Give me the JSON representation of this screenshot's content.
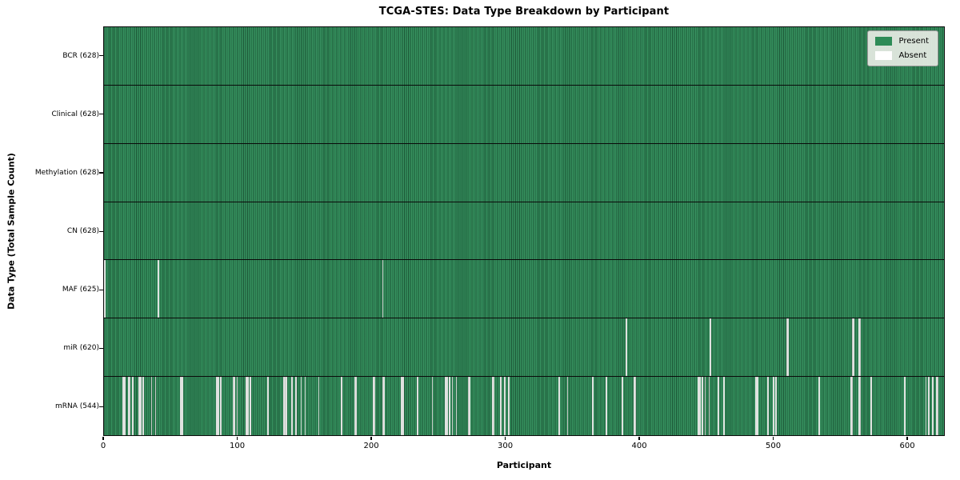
{
  "title": "TCGA-STES: Data Type Breakdown by Participant",
  "colors": {
    "present": "#2e8b57",
    "present_dark_stripe": "#1c5737",
    "absent": "#fafafa",
    "plot_border": "#0d0d0d",
    "legend_bg": "#e7ebe4"
  },
  "legend": {
    "present_label": "Present",
    "absent_label": "Absent"
  },
  "chart_data": {
    "type": "heatmap",
    "title": "TCGA-STES: Data Type Breakdown by Participant",
    "xlabel": "Participant",
    "ylabel": "Data Type (Total Sample Count)",
    "n_participants": 628,
    "x_ticks": [
      0,
      100,
      200,
      300,
      400,
      500,
      600
    ],
    "legend": [
      "Present",
      "Absent"
    ],
    "legend_position": "upper right",
    "grid": false,
    "rows": [
      {
        "label": "BCR (628)",
        "data_type": "BCR",
        "present_count": 628,
        "absent_count": 0,
        "absent_participants": []
      },
      {
        "label": "Clinical (628)",
        "data_type": "Clinical",
        "present_count": 628,
        "absent_count": 0,
        "absent_participants": []
      },
      {
        "label": "Methylation (628)",
        "data_type": "Methylation",
        "present_count": 628,
        "absent_count": 0,
        "absent_participants": []
      },
      {
        "label": "CN (628)",
        "data_type": "CN",
        "present_count": 628,
        "absent_count": 0,
        "absent_participants": []
      },
      {
        "label": "MAF (625)",
        "data_type": "MAF",
        "present_count": 625,
        "absent_count": 3,
        "absent_participants": [
          0,
          40,
          208
        ]
      },
      {
        "label": "miR (620)",
        "data_type": "miR",
        "present_count": 620,
        "absent_count": 8,
        "absent_participants": [
          390,
          453,
          510,
          511,
          559,
          560,
          564,
          565
        ]
      },
      {
        "label": "mRNA (544)",
        "data_type": "mRNA",
        "present_count": 544,
        "absent_count": 84,
        "absent_participants": [
          14,
          15,
          18,
          19,
          21,
          26,
          27,
          29,
          35,
          38,
          57,
          58,
          84,
          85,
          87,
          96,
          97,
          99,
          106,
          107,
          109,
          122,
          134,
          135,
          136,
          140,
          143,
          147,
          150,
          160,
          177,
          187,
          188,
          201,
          202,
          208,
          209,
          222,
          223,
          234,
          245,
          255,
          256,
          258,
          260,
          263,
          272,
          273,
          290,
          291,
          296,
          299,
          302,
          340,
          346,
          365,
          375,
          387,
          396,
          397,
          444,
          445,
          447,
          449,
          452,
          459,
          463,
          487,
          488,
          496,
          500,
          502,
          534,
          558,
          559,
          564,
          565,
          573,
          598,
          614,
          616,
          619,
          622,
          623
        ]
      }
    ]
  }
}
